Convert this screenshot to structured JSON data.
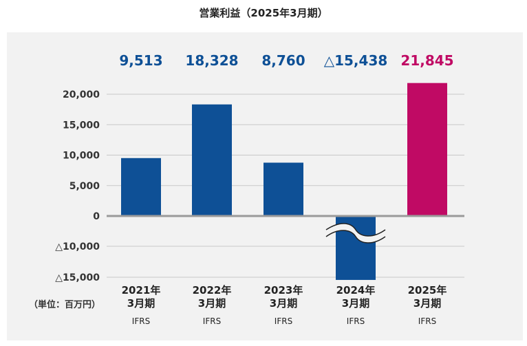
{
  "title": "営業利益（2025年3月期）",
  "unit_label": "（単位：百万円）",
  "chart_data": {
    "type": "bar",
    "categories": [
      {
        "year": "2021年",
        "month": "3月期",
        "standard": "IFRS"
      },
      {
        "year": "2022年",
        "month": "3月期",
        "standard": "IFRS"
      },
      {
        "year": "2023年",
        "month": "3月期",
        "standard": "IFRS"
      },
      {
        "year": "2024年",
        "month": "3月期",
        "standard": "IFRS"
      },
      {
        "year": "2025年",
        "month": "3月期",
        "standard": "IFRS"
      }
    ],
    "values": [
      9513,
      18328,
      8760,
      -15438,
      21845
    ],
    "value_labels": [
      "9,513",
      "18,328",
      "8,760",
      "△15,438",
      "21,845"
    ],
    "bar_colors": [
      "#0e5096",
      "#0e5096",
      "#0e5096",
      "#0e5096",
      "#c00a64"
    ],
    "label_colors": [
      "#0e5096",
      "#0e5096",
      "#0e5096",
      "#0e5096",
      "#c00a64"
    ],
    "positive_ticks": [
      {
        "value": 20000,
        "label": "20,000"
      },
      {
        "value": 15000,
        "label": "15,000"
      },
      {
        "value": 10000,
        "label": "10,000"
      },
      {
        "value": 5000,
        "label": "5,000"
      },
      {
        "value": 0,
        "label": "0"
      }
    ],
    "negative_ticks": [
      {
        "value": -10000,
        "label": "△10,000"
      },
      {
        "value": -15000,
        "label": "△15,000"
      }
    ],
    "ylim": [
      -15000,
      20000
    ],
    "axis_break": true,
    "grid": true
  }
}
